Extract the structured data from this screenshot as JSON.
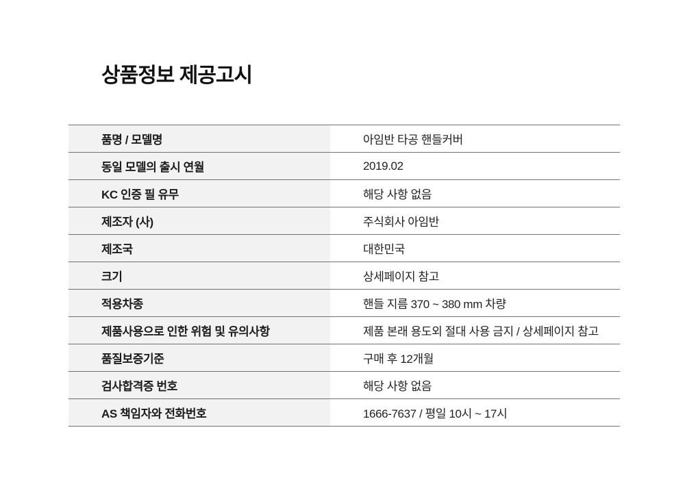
{
  "page": {
    "title": "상품정보 제공고시"
  },
  "table": {
    "rows": [
      {
        "label": "품명 / 모델명",
        "value": "아임반 타공 핸들커버"
      },
      {
        "label": "동일 모델의 출시 연월",
        "value": "2019.02"
      },
      {
        "label": "KC 인증 필 유무",
        "value": "해당 사항 없음"
      },
      {
        "label": "제조자 (사)",
        "value": "주식회사 아임반"
      },
      {
        "label": "제조국",
        "value": "대한민국"
      },
      {
        "label": "크기",
        "value": "상세페이지 참고"
      },
      {
        "label": "적용차종",
        "value": "핸들 지름 370 ~ 380 mm 차량"
      },
      {
        "label": "제품사용으로 인한 위험 및 유의사항",
        "value": "제품 본래 용도외 절대 사용 금지 / 상세페이지 참고"
      },
      {
        "label": "품질보증기준",
        "value": "구매 후 12개월"
      },
      {
        "label": "검사합격증 번호",
        "value": "해당 사항 없음"
      },
      {
        "label": "AS 책임자와 전화번호",
        "value": "1666-7637 / 평일 10시 ~ 17시"
      }
    ]
  },
  "colors": {
    "title_text": "#111111",
    "label_text": "#1b1b1b",
    "value_text": "#222222",
    "row_border": "#707070",
    "label_cell_background": "#f2f2f2",
    "page_background": "#ffffff"
  }
}
